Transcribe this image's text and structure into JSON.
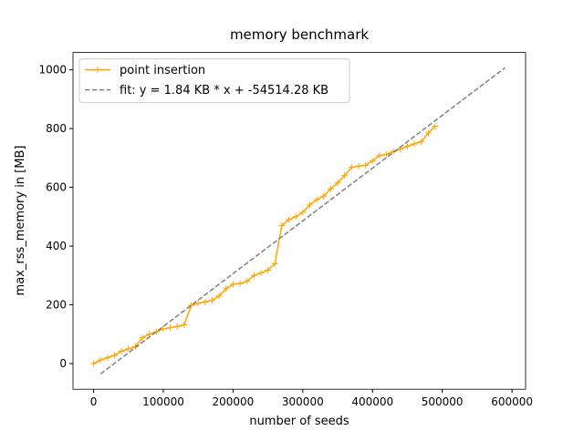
{
  "chart_data": {
    "type": "line",
    "title": "memory benchmark",
    "xlabel": "number of seeds",
    "ylabel": "max_rss_memory in [MB]",
    "xlim": [
      -29500,
      619500
    ],
    "ylim": [
      -87.4,
      1059
    ],
    "xticks": [
      0,
      100000,
      200000,
      300000,
      400000,
      500000,
      600000
    ],
    "yticks": [
      0,
      200,
      400,
      600,
      800,
      1000
    ],
    "legend": "upper left",
    "series": [
      {
        "name": "point insertion",
        "color": "#ffa500",
        "linestyle": "solid",
        "marker": "+",
        "x": [
          0,
          10000,
          20000,
          30000,
          40000,
          50000,
          60000,
          70000,
          80000,
          90000,
          100000,
          110000,
          120000,
          130000,
          140000,
          150000,
          160000,
          170000,
          180000,
          190000,
          200000,
          210000,
          220000,
          230000,
          240000,
          250000,
          260000,
          270000,
          280000,
          290000,
          300000,
          310000,
          320000,
          330000,
          340000,
          350000,
          360000,
          370000,
          380000,
          390000,
          400000,
          410000,
          420000,
          430000,
          440000,
          450000,
          460000,
          470000,
          480000,
          490000
        ],
        "values": [
          0,
          12,
          20,
          28,
          42,
          50,
          58,
          88,
          100,
          108,
          118,
          122,
          126,
          132,
          198,
          205,
          210,
          215,
          230,
          255,
          270,
          272,
          280,
          300,
          308,
          318,
          340,
          470,
          490,
          500,
          515,
          540,
          558,
          570,
          595,
          615,
          640,
          668,
          672,
          675,
          690,
          708,
          712,
          722,
          730,
          740,
          748,
          755,
          785,
          808
        ]
      },
      {
        "name": "fit: y = 1.84 KB * x + -54514.28 KB",
        "color": "#808080",
        "linestyle": "dashed",
        "marker": "none",
        "x": [
          10000,
          590000
        ],
        "values": [
          -35.3,
          1006.9
        ]
      }
    ]
  }
}
